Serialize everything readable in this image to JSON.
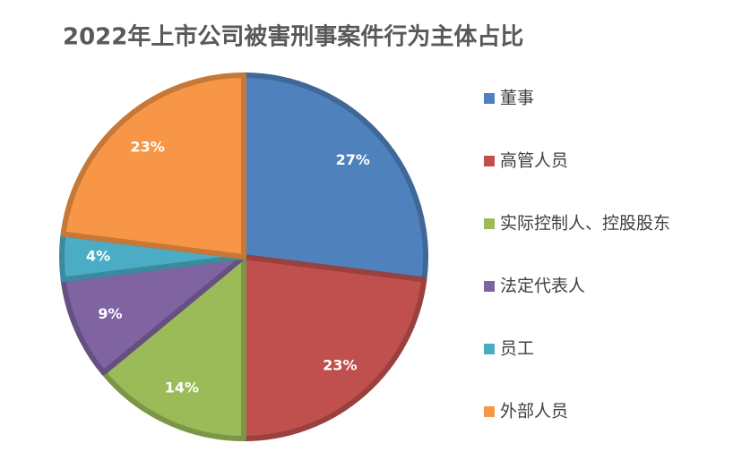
{
  "chart_data": {
    "type": "pie",
    "title": "2022年上市公司被害刑事案件行为主体占比",
    "categories": [
      "董事",
      "高管人员",
      "实际控制人、控股股东",
      "法定代表人",
      "员工",
      "外部人员"
    ],
    "values": [
      27,
      23,
      14,
      9,
      4,
      23
    ],
    "value_labels": [
      "27%",
      "23%",
      "14%",
      "9%",
      "4%",
      "23%"
    ],
    "colors": [
      "#4f81bd",
      "#c0504d",
      "#9bbb59",
      "#8064a2",
      "#4bacc6",
      "#f79646"
    ],
    "legend": "right"
  }
}
